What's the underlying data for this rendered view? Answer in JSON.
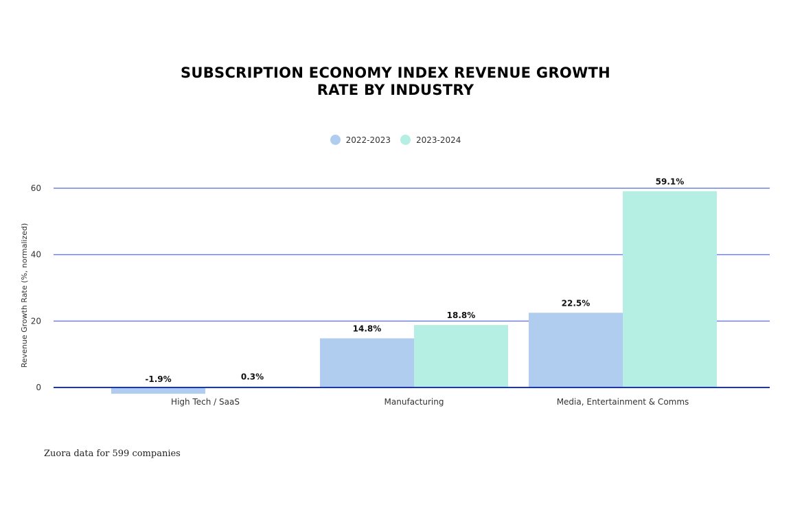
{
  "chart_data": {
    "type": "bar",
    "title_lines": [
      "SUBSCRIPTION ECONOMY INDEX REVENUE GROWTH",
      "RATE BY INDUSTRY"
    ],
    "xlabel": "",
    "ylabel": "Revenue Growth Rate (%, normalized)",
    "ylim": [
      -5,
      62
    ],
    "yticks": [
      0,
      20,
      40,
      60
    ],
    "grid": true,
    "legend_position": "top-center",
    "categories": [
      "High Tech / SaaS",
      "Manufacturing",
      "Media, Entertainment & Comms"
    ],
    "series": [
      {
        "name": "2022-2023",
        "color": "#b0cdf0",
        "values": [
          -1.9,
          14.8,
          22.5
        ],
        "labels": [
          "-1.9%",
          "14.8%",
          "22.5%"
        ]
      },
      {
        "name": "2023-2024",
        "color": "#b5eee3",
        "values": [
          0.3,
          18.8,
          59.1
        ],
        "labels": [
          "0.3%",
          "18.8%",
          "59.1%"
        ]
      }
    ],
    "gridline_color": "#6f83e0",
    "zero_line_color": "#1733c9"
  },
  "footer": {
    "source": "Zuora data for 599 companies"
  }
}
